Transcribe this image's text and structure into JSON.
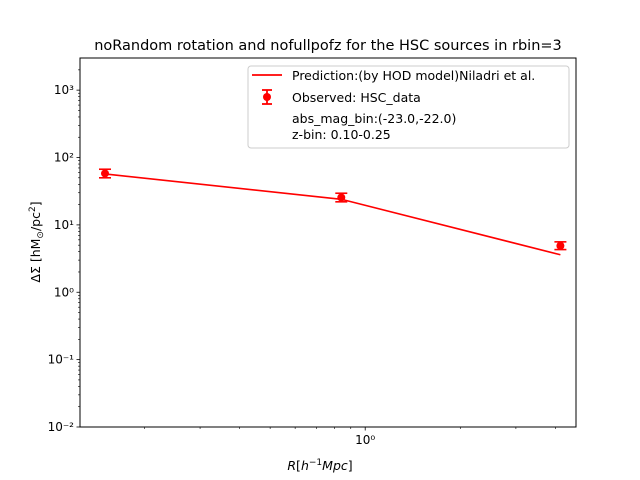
{
  "chart_data": {
    "type": "line",
    "title": "noRandom rotation and nofullpofz for the HSC sources in rbin=3",
    "xlabel": "R[h⁻¹Mpc]",
    "ylabel": "ΔΣ [hM⊙/pc²]",
    "xscale": "log",
    "yscale": "log",
    "xlim": [
      0.125,
      4.65
    ],
    "ylim": [
      0.01,
      3000
    ],
    "x_ticks": [
      {
        "value": 1,
        "label": "10⁰"
      }
    ],
    "y_ticks": [
      {
        "value": 0.01,
        "label": "10⁻²"
      },
      {
        "value": 0.1,
        "label": "10⁻¹"
      },
      {
        "value": 1,
        "label": "10⁰"
      },
      {
        "value": 10,
        "label": "10¹"
      },
      {
        "value": 100,
        "label": "10²"
      },
      {
        "value": 1000,
        "label": "10³"
      }
    ],
    "grid": false,
    "legend_position": "top-right",
    "color": "#ff0000",
    "series": [
      {
        "name": "Prediction:(by HOD model)Niladri et al.",
        "kind": "line",
        "x": [
          0.15,
          0.84,
          4.15
        ],
        "y": [
          57,
          24,
          3.6
        ]
      },
      {
        "name": "Observed: HSC_data",
        "kind": "errorbar",
        "x": [
          0.15,
          0.84,
          4.15
        ],
        "y": [
          58,
          25.5,
          4.9
        ],
        "yerr_low": [
          8,
          3.5,
          0.6
        ],
        "yerr_high": [
          9,
          4,
          0.7
        ]
      }
    ],
    "annotations": [
      "abs_mag_bin:(-23.0,-22.0)",
      "z-bin: 0.10-0.25"
    ]
  }
}
